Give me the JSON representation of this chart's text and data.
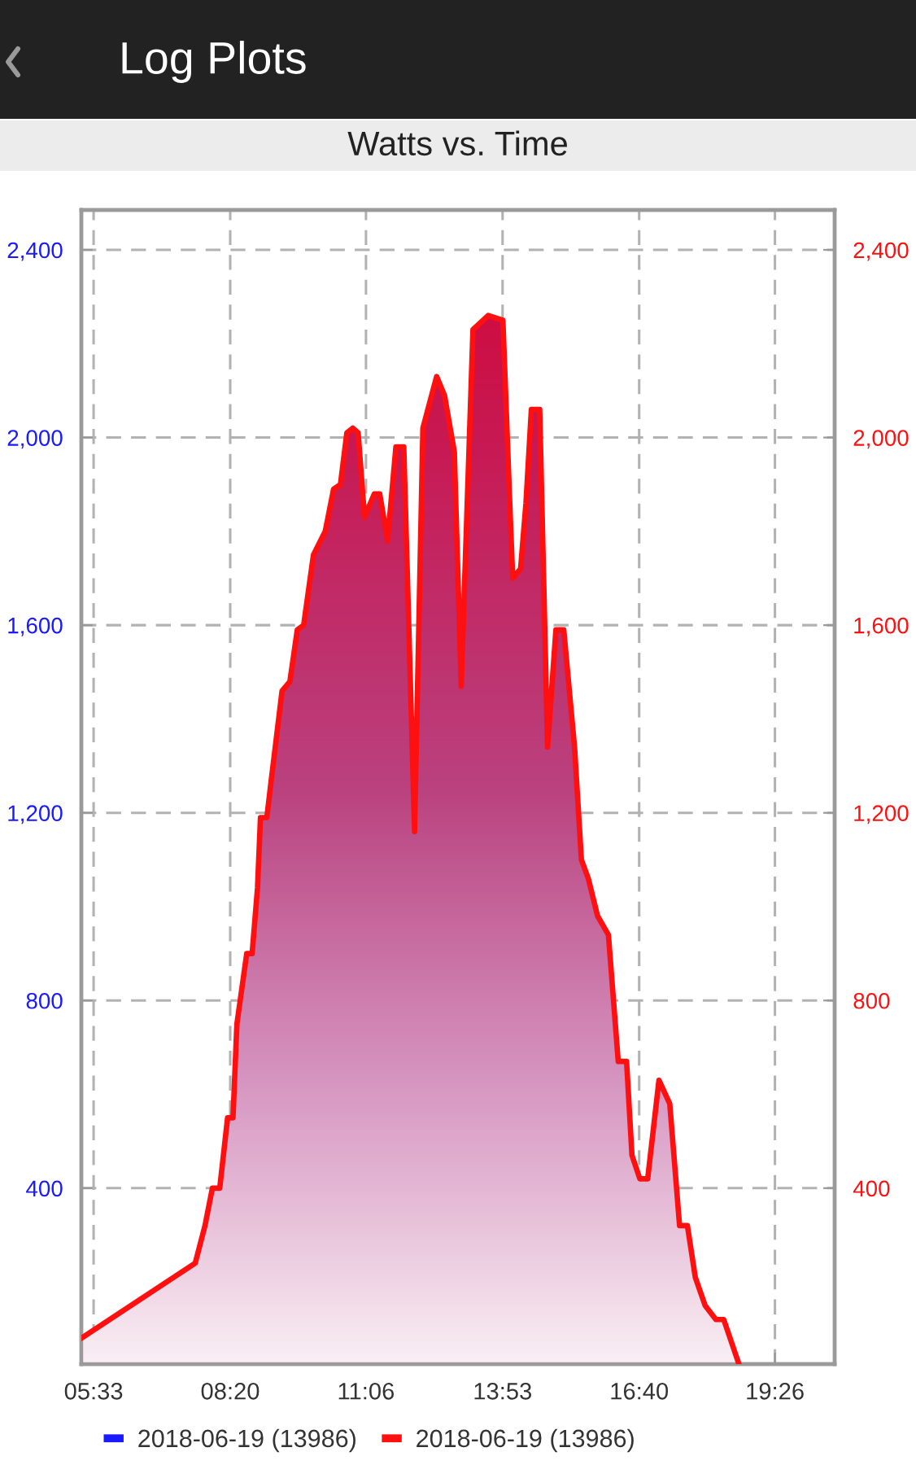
{
  "chart_data": {
    "type": "area",
    "title": "Log Plots",
    "subtitle": "Watts vs. Time",
    "x": [
      5.3,
      7.62,
      7.82,
      7.97,
      8.12,
      8.28,
      8.39,
      8.47,
      8.67,
      8.78,
      8.89,
      8.95,
      9.08,
      9.17,
      9.39,
      9.55,
      9.7,
      9.83,
      10.03,
      10.27,
      10.44,
      10.58,
      10.71,
      10.83,
      10.94,
      11.07,
      11.27,
      11.38,
      11.54,
      11.71,
      11.87,
      12.09,
      12.26,
      12.54,
      12.7,
      12.9,
      13.04,
      13.28,
      13.59,
      13.89,
      14.03,
      14.09,
      14.25,
      14.36,
      14.47,
      14.64,
      14.8,
      14.97,
      15.13,
      15.35,
      15.49,
      15.63,
      15.82,
      16.04,
      16.24,
      16.41,
      16.52,
      16.68,
      16.84,
      17.07,
      17.29,
      17.49,
      17.65,
      17.81,
      18.01,
      18.23,
      18.39,
      18.7
    ],
    "series": [
      {
        "name": "2018-06-19 (13986)",
        "color": "#1a1aff",
        "axis": "y",
        "values": [
          null,
          null,
          null,
          null,
          null,
          null,
          null,
          null,
          null,
          null,
          null,
          null,
          null,
          null,
          null,
          null,
          null,
          null,
          null,
          null,
          null,
          null,
          null,
          null,
          null,
          null,
          null,
          null,
          null,
          null,
          null,
          null,
          null,
          null,
          null,
          null,
          null,
          null,
          null,
          null,
          null,
          null,
          null,
          null,
          null,
          null,
          null,
          null,
          null,
          null,
          null,
          null,
          null,
          null,
          null,
          null,
          null,
          null,
          null,
          null,
          null,
          null,
          null,
          null,
          null,
          null,
          null,
          null
        ]
      },
      {
        "name": "2018-06-19 (13986)",
        "color": "#ff1010",
        "axis": "y2",
        "values": [
          80,
          240,
          320,
          400,
          400,
          550,
          550,
          750,
          900,
          900,
          1040,
          1190,
          1190,
          1270,
          1460,
          1480,
          1590,
          1600,
          1750,
          1800,
          1890,
          1900,
          2010,
          2020,
          2010,
          1830,
          1880,
          1880,
          1780,
          1980,
          1980,
          1160,
          2020,
          2130,
          2090,
          1970,
          1470,
          2230,
          2260,
          2250,
          1860,
          1700,
          1720,
          1860,
          2060,
          2060,
          1340,
          1590,
          1590,
          1340,
          1100,
          1060,
          980,
          940,
          670,
          670,
          470,
          420,
          420,
          630,
          580,
          320,
          320,
          210,
          150,
          120,
          120,
          25
        ]
      }
    ],
    "xlim": [
      5.3,
      20.65
    ],
    "xticks": [
      {
        "value": 5.55,
        "label": "05:33"
      },
      {
        "value": 8.3333,
        "label": "08:20"
      },
      {
        "value": 11.1,
        "label": "11:06"
      },
      {
        "value": 13.8833,
        "label": "13:53"
      },
      {
        "value": 16.6667,
        "label": "16:40"
      },
      {
        "value": 19.4333,
        "label": "19:26"
      }
    ],
    "ylim": [
      25,
      2485
    ],
    "yticks": [
      400,
      800,
      {
        "value": 1200,
        "label": "1,200"
      },
      {
        "value": 1600,
        "label": "1,600"
      },
      {
        "value": 2000,
        "label": "2,000"
      },
      {
        "value": 2400,
        "label": "2,400"
      }
    ],
    "y2lim": [
      25,
      2485
    ],
    "y2ticks": [
      400,
      800,
      {
        "value": 1200,
        "label": "1,200"
      },
      {
        "value": 1600,
        "label": "1,600"
      },
      {
        "value": 2000,
        "label": "2,000"
      },
      {
        "value": 2400,
        "label": "2,400"
      }
    ],
    "grid": true,
    "legend": "bottom"
  }
}
